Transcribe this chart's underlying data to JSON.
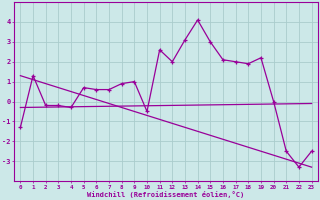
{
  "xlabel": "Windchill (Refroidissement éolien,°C)",
  "background_color": "#cce8e8",
  "grid_color": "#aacccc",
  "line_color": "#990099",
  "x_data": [
    0,
    1,
    2,
    3,
    4,
    5,
    6,
    7,
    8,
    9,
    10,
    11,
    12,
    13,
    14,
    15,
    16,
    17,
    18,
    19,
    20,
    21,
    22,
    23
  ],
  "y_main": [
    -1.3,
    1.3,
    -0.2,
    -0.2,
    -0.3,
    0.7,
    0.6,
    0.6,
    0.9,
    1.0,
    -0.5,
    2.6,
    2.0,
    3.1,
    4.1,
    3.0,
    2.1,
    2.0,
    1.9,
    2.2,
    0.0,
    -2.5,
    -3.3,
    -2.5
  ],
  "trend1_x": [
    0,
    23
  ],
  "trend1_y": [
    -0.3,
    -0.1
  ],
  "trend2_x": [
    0,
    23
  ],
  "trend2_y": [
    1.3,
    -3.3
  ],
  "ylim": [
    -4,
    5
  ],
  "yticks": [
    -3,
    -2,
    -1,
    0,
    1,
    2,
    3,
    4
  ],
  "xticks": [
    0,
    1,
    2,
    3,
    4,
    5,
    6,
    7,
    8,
    9,
    10,
    11,
    12,
    13,
    14,
    15,
    16,
    17,
    18,
    19,
    20,
    21,
    22,
    23
  ]
}
